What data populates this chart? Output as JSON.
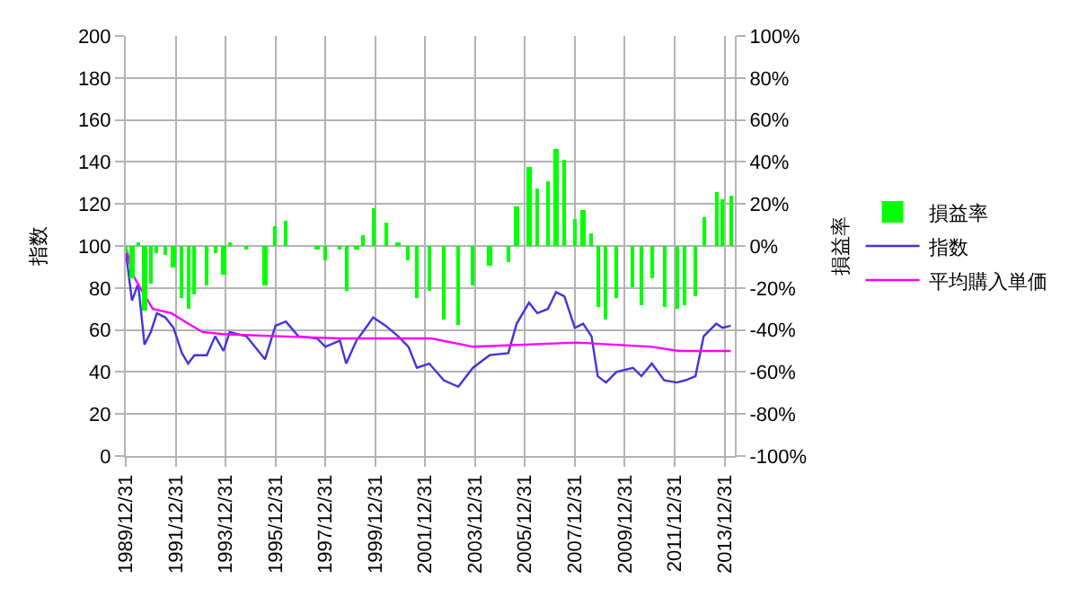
{
  "chart_data": {
    "type": "bar",
    "ylabel": "指数",
    "y2label": "損益率",
    "x": [
      "1990-01",
      "1990-04",
      "1990-07",
      "1990-10",
      "1991-01",
      "1991-04",
      "1991-08",
      "1991-12",
      "1992-04",
      "1992-07",
      "1992-10",
      "1993-04",
      "1993-08",
      "1993-12",
      "1994-03",
      "1994-11",
      "1995-08",
      "1996-01",
      "1996-06",
      "1996-12",
      "1997-09",
      "1998-01",
      "1998-08",
      "1998-11",
      "1999-04",
      "1999-07",
      "1999-12",
      "2000-06",
      "2000-12",
      "2001-05",
      "2001-09",
      "2002-03",
      "2002-10",
      "2003-05",
      "2003-12",
      "2004-08",
      "2005-05",
      "2005-09",
      "2006-03",
      "2006-07",
      "2006-12",
      "2007-04",
      "2007-08",
      "2008-01",
      "2008-05",
      "2008-09",
      "2008-12",
      "2009-04",
      "2009-09",
      "2010-05",
      "2010-09",
      "2011-02",
      "2011-08",
      "2012-02",
      "2012-06",
      "2012-11",
      "2013-03",
      "2013-09",
      "2013-12",
      "2014-04"
    ],
    "series": [
      {
        "name": "損益率",
        "axis": "y2",
        "color": "#00ff00",
        "values": [
          -3,
          -15,
          1,
          -31,
          -18,
          -3,
          -4,
          -10,
          -25,
          -30,
          -23,
          -19,
          -3,
          -14,
          2,
          -2,
          -19,
          9,
          12,
          0,
          -1,
          -7,
          -2,
          -21,
          -2,
          5,
          18,
          11,
          2,
          -7,
          -25,
          -21,
          -35,
          -38,
          -19,
          -9,
          -8,
          19,
          38,
          27,
          31,
          46,
          41,
          13,
          17,
          6,
          -29,
          -35,
          -25,
          -20,
          -28,
          -15,
          -29,
          -30,
          -28,
          -24,
          14,
          26,
          22,
          24
        ]
      },
      {
        "name": "指数",
        "type": "line",
        "color": "#4433dd",
        "values": [
          97,
          74,
          82,
          53,
          59,
          68,
          66,
          61,
          49,
          44,
          48,
          48,
          57,
          50,
          59,
          57,
          46,
          62,
          64,
          57,
          56,
          52,
          55,
          44,
          55,
          59,
          66,
          62,
          57,
          52,
          42,
          44,
          36,
          33,
          42,
          48,
          49,
          63,
          73,
          68,
          70,
          78,
          76,
          61,
          63,
          57,
          38,
          35,
          40,
          42,
          38,
          44,
          36,
          35,
          36,
          38,
          57,
          63,
          61,
          62
        ]
      },
      {
        "name": "平均購入単価",
        "type": "line",
        "color": "#ff00ff",
        "x": [
          "1990-01",
          "1990-04",
          "1990-08",
          "1991-02",
          "1991-11",
          "1992-07",
          "1993-02",
          "1993-12",
          "1996-03",
          "1998-08",
          "2002-04",
          "2003-12",
          "2008-02",
          "2011-02",
          "2012-03",
          "2014-04"
        ],
        "values": [
          100,
          87,
          80,
          70,
          68,
          63,
          59,
          58,
          57,
          56,
          56,
          52,
          54,
          52,
          50,
          50
        ]
      }
    ],
    "xlim": [
      "1989-12-31",
      "2014-05-31"
    ],
    "xticks": [
      {
        "value": "1989-12-31",
        "label": "1989/12/31"
      },
      {
        "value": "1991-12-31",
        "label": "1991/12/31"
      },
      {
        "value": "1993-12-31",
        "label": "1993/12/31"
      },
      {
        "value": "1995-12-31",
        "label": "1995/12/31"
      },
      {
        "value": "1997-12-31",
        "label": "1997/12/31"
      },
      {
        "value": "1999-12-31",
        "label": "1999/12/31"
      },
      {
        "value": "2001-12-31",
        "label": "2001/12/31"
      },
      {
        "value": "2003-12-31",
        "label": "2003/12/31"
      },
      {
        "value": "2005-12-31",
        "label": "2005/12/31"
      },
      {
        "value": "2007-12-31",
        "label": "2007/12/31"
      },
      {
        "value": "2009-12-31",
        "label": "2009/12/31"
      },
      {
        "value": "2011-12-31",
        "label": "2011/12/31"
      },
      {
        "value": "2013-12-31",
        "label": "2013/12/31"
      }
    ],
    "ylim": [
      0,
      200
    ],
    "yticks": [
      0,
      20,
      40,
      60,
      80,
      100,
      120,
      140,
      160,
      180,
      200
    ],
    "y2lim": [
      -100,
      100
    ],
    "y2ticks": [
      {
        "value": -100,
        "label": "-100%"
      },
      {
        "value": -80,
        "label": "-80%"
      },
      {
        "value": -60,
        "label": "-60%"
      },
      {
        "value": -40,
        "label": "-40%"
      },
      {
        "value": -20,
        "label": "-20%"
      },
      {
        "value": 0,
        "label": "0%"
      },
      {
        "value": 20,
        "label": "20%"
      },
      {
        "value": 40,
        "label": "40%"
      },
      {
        "value": 60,
        "label": "60%"
      },
      {
        "value": 80,
        "label": "80%"
      },
      {
        "value": 100,
        "label": "100%"
      }
    ],
    "grid": true,
    "legend": "right"
  }
}
